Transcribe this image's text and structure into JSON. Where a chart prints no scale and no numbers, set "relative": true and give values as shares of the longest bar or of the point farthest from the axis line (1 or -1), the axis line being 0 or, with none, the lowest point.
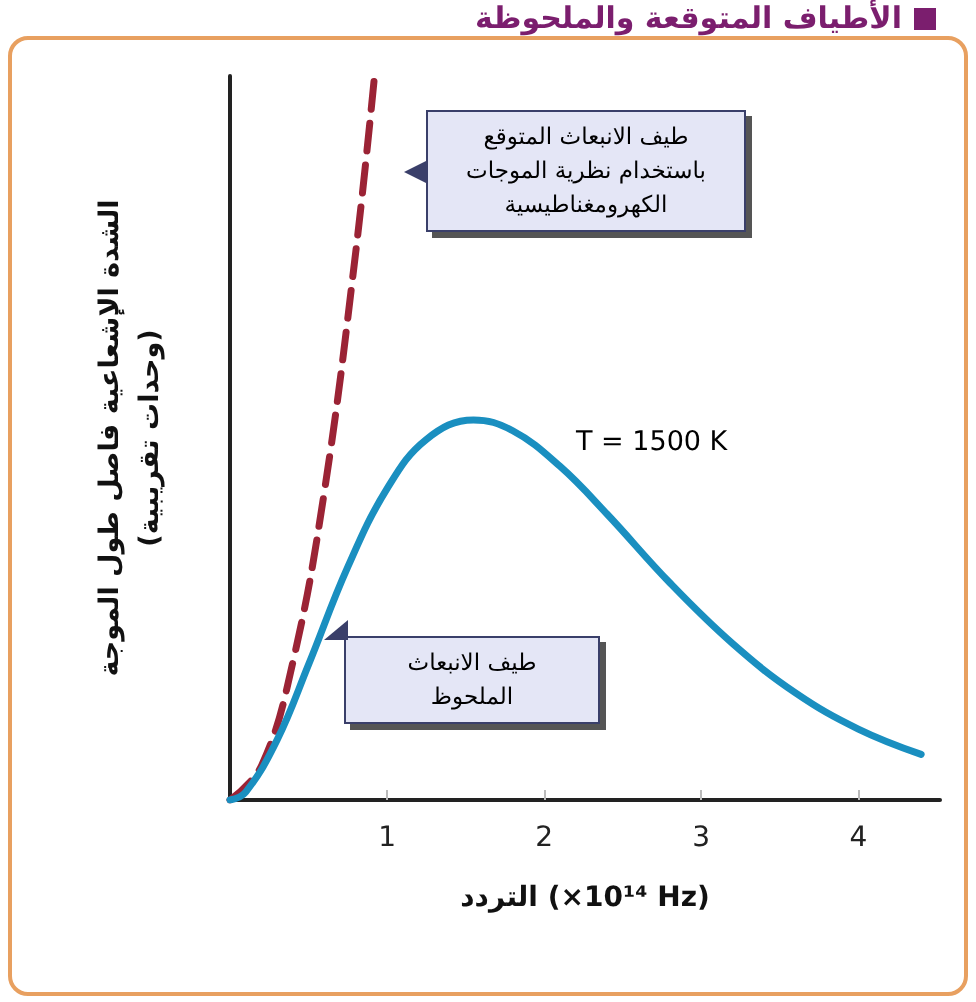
{
  "chart_data": {
    "type": "line",
    "title": "الأطياف المتوقعة والملحوظة",
    "xlabel": "التردد (×10¹⁴ Hz)",
    "ylabel": "الشدة الإشعاعية فاصل طول الموجة\n(وحدات تقريبية)",
    "relative": true,
    "xlim": [
      0,
      4.52
    ],
    "xticks": [
      1,
      2,
      3,
      4
    ],
    "grid": false,
    "marker": "none",
    "annotations": [
      "طيف الانبعاث المتوقع باستخدام نظرية الموجات الكهرومغناطيسية",
      "طيف الانبعاث الملحوظ",
      "T = 1500 K"
    ],
    "series": [
      {
        "color": "#9b2335",
        "line_style": "dashed",
        "x": [
          0,
          0.2,
          0.4,
          0.6,
          0.8,
          0.92
        ],
        "values": [
          0,
          0.047,
          0.19,
          0.425,
          0.756,
          1
        ]
      },
      {
        "color": "#1a8fc0",
        "line_style": "solid",
        "x": [
          0,
          0.1,
          0.3,
          0.5,
          0.75,
          1.0,
          1.25,
          1.55,
          1.8,
          2.1,
          2.4,
          2.8,
          3.2,
          3.6,
          4.0,
          4.4
        ],
        "values": [
          0,
          0.011,
          0.083,
          0.187,
          0.322,
          0.43,
          0.498,
          0.525,
          0.51,
          0.461,
          0.395,
          0.3,
          0.216,
          0.148,
          0.098,
          0.063
        ]
      }
    ]
  }
}
